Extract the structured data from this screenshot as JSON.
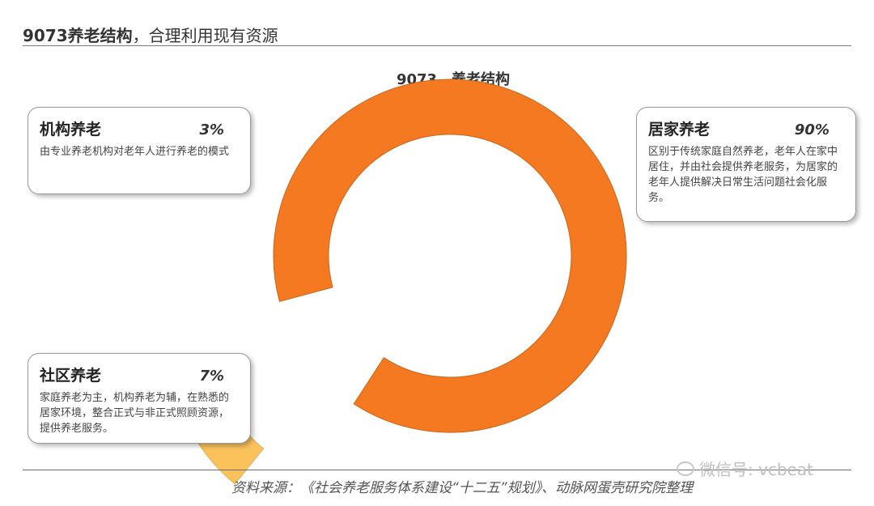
{
  "header": {
    "title_bold": "9073养老结构",
    "title_rest": "，合理利用现有资源"
  },
  "chart_data": {
    "type": "pie",
    "style": "donut",
    "title": "9073，养老结构",
    "categories": [
      "居家养老",
      "社区养老",
      "机构养老"
    ],
    "values": [
      90,
      7,
      3
    ],
    "unit": "%",
    "colors": [
      "#F47920",
      "#FBC25C",
      "#FDE7A7"
    ]
  },
  "callouts": {
    "institution": {
      "name": "机构养老",
      "pct": "3%",
      "desc": "由专业养老机构对老年人进行养老的模式"
    },
    "home": {
      "name": "居家养老",
      "pct": "90%",
      "desc": "区别于传统家庭自然养老，老年人在家中居住，并由社会提供养老服务，为居家的老年人提供解决日常生活问题社会化服务。"
    },
    "community": {
      "name": "社区养老",
      "pct": "7%",
      "desc": "家庭养老为主，机构养老为辅，在熟悉的居家环境，整合正式与非正式照顾资源，提供养老服务。"
    }
  },
  "footer": {
    "source": "资料来源：《社会养老服务体系建设“十二五”规划》、动脉网蛋壳研究院整理",
    "watermark": "微信号: vcbeat"
  }
}
